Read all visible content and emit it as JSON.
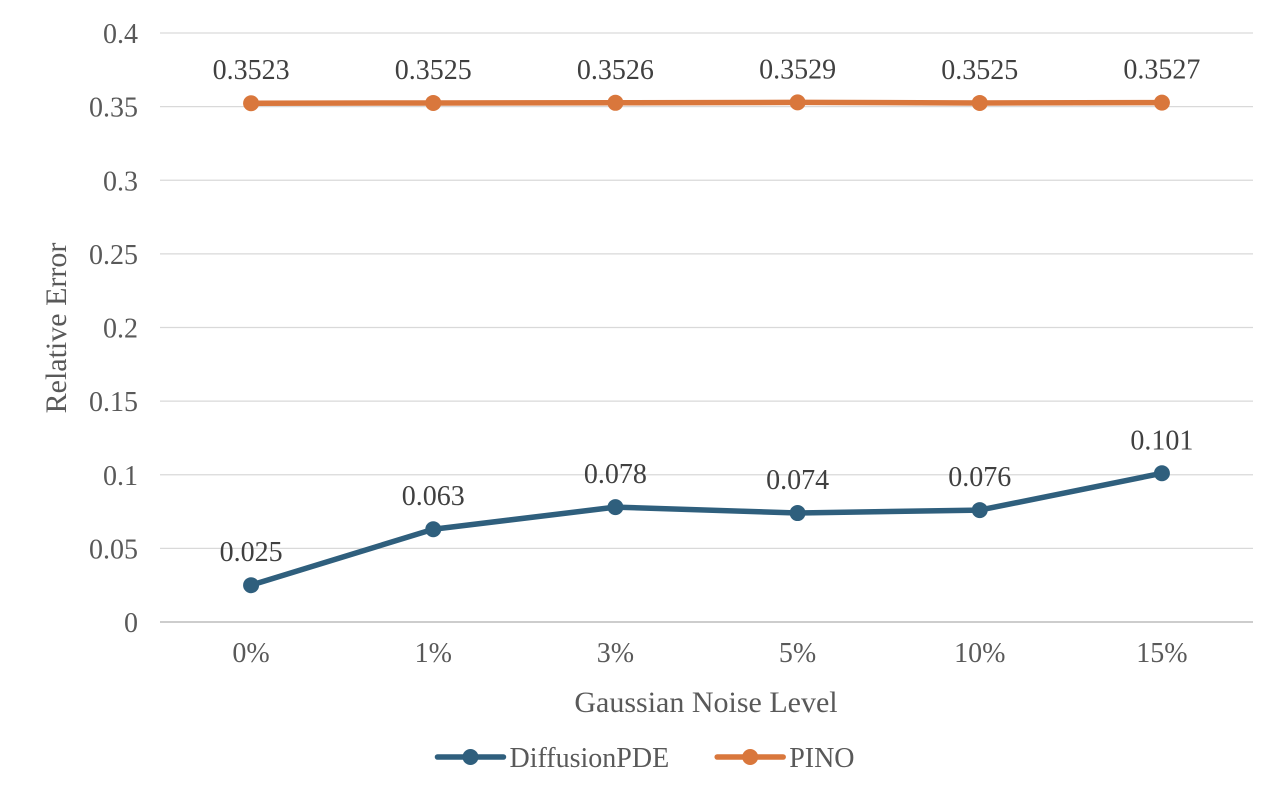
{
  "chart_data": {
    "type": "line",
    "title": "",
    "xlabel": "Gaussian Noise Level",
    "ylabel": "Relative Error",
    "categories": [
      "0%",
      "1%",
      "3%",
      "5%",
      "10%",
      "15%"
    ],
    "series": [
      {
        "name": "DiffusionPDE",
        "color": "#2F5F7D",
        "values": [
          0.025,
          0.063,
          0.078,
          0.074,
          0.076,
          0.101
        ],
        "point_labels": [
          "0.025",
          "0.063",
          "0.078",
          "0.074",
          "0.076",
          "0.101"
        ]
      },
      {
        "name": "PINO",
        "color": "#D9773C",
        "values": [
          0.3523,
          0.3525,
          0.3526,
          0.3529,
          0.3525,
          0.3527
        ],
        "point_labels": [
          "0.3523",
          "0.3525",
          "0.3526",
          "0.3529",
          "0.3525",
          "0.3527"
        ]
      }
    ],
    "y_axis": {
      "min": 0,
      "max": 0.4,
      "step": 0.05,
      "tick_labels": [
        "0",
        "0.05",
        "0.1",
        "0.15",
        "0.2",
        "0.25",
        "0.3",
        "0.35",
        "0.4"
      ]
    },
    "x_axis": {
      "tick_labels": [
        "0%",
        "1%",
        "3%",
        "5%",
        "10%",
        "15%"
      ]
    },
    "grid": "horizontal",
    "legend_position": "bottom",
    "styles": {
      "gridline_color": "#D9D9D9",
      "axis_line_color": "#C6C6C6",
      "tick_text_color": "#595959",
      "data_label_color": "#404040",
      "background": "#FFFFFF"
    }
  }
}
